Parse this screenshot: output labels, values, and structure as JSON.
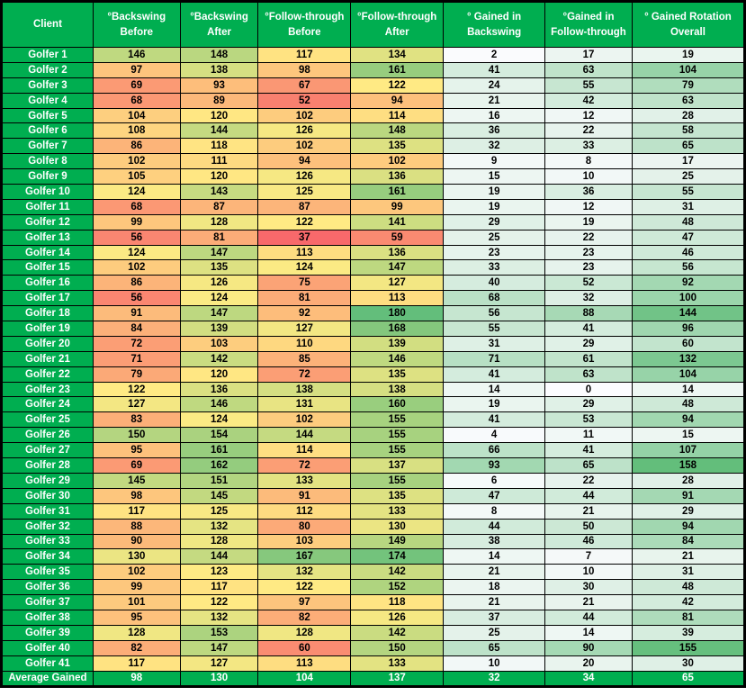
{
  "chart_data": {
    "type": "table",
    "title": "Golfer rotation gains table",
    "columns": [
      [
        "Client"
      ],
      [
        "°Backswing",
        "Before"
      ],
      [
        "°Backswing",
        "After"
      ],
      [
        "°Follow-through",
        "Before"
      ],
      [
        "°Follow-through",
        "After"
      ],
      [
        "° Gained in",
        "Backswing"
      ],
      [
        "°Gained in",
        "Follow-through"
      ],
      [
        "° Gained Rotation",
        "Overall"
      ]
    ],
    "rows": [
      {
        "label": "Golfer 1",
        "values": [
          146,
          148,
          117,
          134,
          2,
          17,
          19
        ]
      },
      {
        "label": "Golfer 2",
        "values": [
          97,
          138,
          98,
          161,
          41,
          63,
          104
        ]
      },
      {
        "label": "Golfer 3",
        "values": [
          69,
          93,
          67,
          122,
          24,
          55,
          79
        ]
      },
      {
        "label": "Golfer 4",
        "values": [
          68,
          89,
          52,
          94,
          21,
          42,
          63
        ]
      },
      {
        "label": "Golfer 5",
        "values": [
          104,
          120,
          102,
          114,
          16,
          12,
          28
        ]
      },
      {
        "label": "Golfer 6",
        "values": [
          108,
          144,
          126,
          148,
          36,
          22,
          58
        ]
      },
      {
        "label": "Golfer 7",
        "values": [
          86,
          118,
          102,
          135,
          32,
          33,
          65
        ]
      },
      {
        "label": "Golfer 8",
        "values": [
          102,
          111,
          94,
          102,
          9,
          8,
          17
        ]
      },
      {
        "label": "Golfer 9",
        "values": [
          105,
          120,
          126,
          136,
          15,
          10,
          25
        ]
      },
      {
        "label": "Golfer 10",
        "values": [
          124,
          143,
          125,
          161,
          19,
          36,
          55
        ]
      },
      {
        "label": "Golfer 11",
        "values": [
          68,
          87,
          87,
          99,
          19,
          12,
          31
        ]
      },
      {
        "label": "Golfer 12",
        "values": [
          99,
          128,
          122,
          141,
          29,
          19,
          48
        ]
      },
      {
        "label": "Golfer 13",
        "values": [
          56,
          81,
          37,
          59,
          25,
          22,
          47
        ]
      },
      {
        "label": "Golfer 14",
        "values": [
          124,
          147,
          113,
          136,
          23,
          23,
          46
        ]
      },
      {
        "label": "Golfer 15",
        "values": [
          102,
          135,
          124,
          147,
          33,
          23,
          56
        ]
      },
      {
        "label": "Golfer 16",
        "values": [
          86,
          126,
          75,
          127,
          40,
          52,
          92
        ]
      },
      {
        "label": "Golfer 17",
        "values": [
          56,
          124,
          81,
          113,
          68,
          32,
          100
        ]
      },
      {
        "label": "Golfer 18",
        "values": [
          91,
          147,
          92,
          180,
          56,
          88,
          144
        ]
      },
      {
        "label": "Golfer 19",
        "values": [
          84,
          139,
          127,
          168,
          55,
          41,
          96
        ]
      },
      {
        "label": "Golfer 20",
        "values": [
          72,
          103,
          110,
          139,
          31,
          29,
          60
        ]
      },
      {
        "label": "Golfer 21",
        "values": [
          71,
          142,
          85,
          146,
          71,
          61,
          132
        ]
      },
      {
        "label": "Golfer 22",
        "values": [
          79,
          120,
          72,
          135,
          41,
          63,
          104
        ]
      },
      {
        "label": "Golfer 23",
        "values": [
          122,
          136,
          138,
          138,
          14,
          0,
          14
        ]
      },
      {
        "label": "Golfer 24",
        "values": [
          127,
          146,
          131,
          160,
          19,
          29,
          48
        ]
      },
      {
        "label": "Golfer 25",
        "values": [
          83,
          124,
          102,
          155,
          41,
          53,
          94
        ]
      },
      {
        "label": "Golfer 26",
        "values": [
          150,
          154,
          144,
          155,
          4,
          11,
          15
        ]
      },
      {
        "label": "Golfer 27",
        "values": [
          95,
          161,
          114,
          155,
          66,
          41,
          107
        ]
      },
      {
        "label": "Golfer 28",
        "values": [
          69,
          162,
          72,
          137,
          93,
          65,
          158
        ]
      },
      {
        "label": "Golfer 29",
        "values": [
          145,
          151,
          133,
          155,
          6,
          22,
          28
        ]
      },
      {
        "label": "Golfer 30",
        "values": [
          98,
          145,
          91,
          135,
          47,
          44,
          91
        ]
      },
      {
        "label": "Golfer 31",
        "values": [
          117,
          125,
          112,
          133,
          8,
          21,
          29
        ]
      },
      {
        "label": "Golfer 32",
        "values": [
          88,
          132,
          80,
          130,
          44,
          50,
          94
        ]
      },
      {
        "label": "Golfer 33",
        "values": [
          90,
          128,
          103,
          149,
          38,
          46,
          84
        ]
      },
      {
        "label": "Golfer 34",
        "values": [
          130,
          144,
          167,
          174,
          14,
          7,
          21
        ]
      },
      {
        "label": "Golfer 35",
        "values": [
          102,
          123,
          132,
          142,
          21,
          10,
          31
        ]
      },
      {
        "label": "Golfer 36",
        "values": [
          99,
          117,
          122,
          152,
          18,
          30,
          48
        ]
      },
      {
        "label": "Golfer 37",
        "values": [
          101,
          122,
          97,
          118,
          21,
          21,
          42
        ]
      },
      {
        "label": "Golfer 38",
        "values": [
          95,
          132,
          82,
          126,
          37,
          44,
          81
        ]
      },
      {
        "label": "Golfer 39",
        "values": [
          128,
          153,
          128,
          142,
          25,
          14,
          39
        ]
      },
      {
        "label": "Golfer 40",
        "values": [
          82,
          147,
          60,
          150,
          65,
          90,
          155
        ]
      },
      {
        "label": "Golfer 41",
        "values": [
          117,
          127,
          113,
          133,
          10,
          20,
          30
        ]
      }
    ],
    "footer": {
      "label": "Average Gained",
      "values": [
        98,
        130,
        104,
        137,
        32,
        34,
        65
      ]
    },
    "layout_hints": {
      "scale3_columns": "first four numeric columns share one red-yellow-green color scale",
      "scale2_columns": "last three numeric columns share one white-green color scale",
      "grid": "black gridlines, thick black outer border"
    }
  },
  "style": {
    "solid_green": "#00AE50",
    "header_text_color": "#FFFFFF",
    "data_text_color": "#000000",
    "border_color": "#000000",
    "scale3": {
      "min": "#F8696B",
      "mid": "#FFEB84",
      "max": "#63BE7B"
    },
    "scale2": {
      "min": "#FCFCFF",
      "max": "#63BE7B"
    }
  }
}
